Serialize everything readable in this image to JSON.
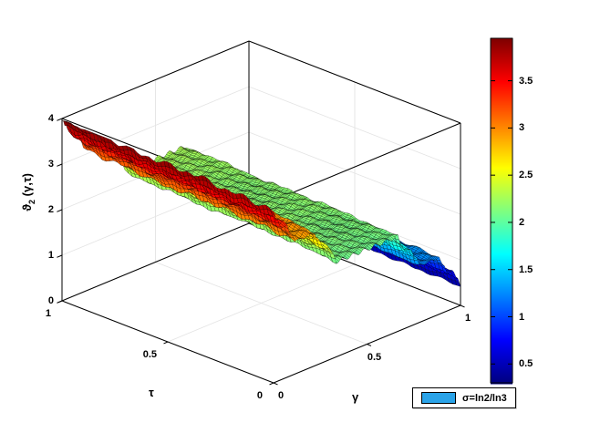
{
  "chart_data": {
    "type": "surface",
    "title": "",
    "x_axis": {
      "label": "γ",
      "range": [
        0,
        1
      ],
      "ticks": [
        "0",
        "0.5",
        "1"
      ],
      "tick_values": [
        0,
        0.5,
        1
      ]
    },
    "y_axis": {
      "label": "τ",
      "range": [
        0,
        1
      ],
      "ticks": [
        "1",
        "0.5",
        "0"
      ],
      "tick_values": [
        1,
        0.5,
        0
      ]
    },
    "z_axis": {
      "label_theta": "ϑ",
      "label_sub": "2",
      "label_args": "(γ,τ)",
      "range": [
        0,
        4
      ],
      "ticks": [
        "0",
        "1",
        "2",
        "3",
        "4"
      ],
      "tick_values": [
        0,
        1,
        2,
        3,
        4
      ]
    },
    "colormap": "jet",
    "clim": [
      0.3,
      3.95
    ],
    "colorbar": {
      "position": "right",
      "ticks": [
        "0.5",
        "1",
        "1.5",
        "2",
        "2.5",
        "3",
        "3.5"
      ],
      "tick_values": [
        0.5,
        1,
        1.5,
        2,
        2.5,
        3,
        3.5
      ]
    },
    "legend": {
      "label": "σ=ln2/ln3",
      "swatch_color": "#2aa3e8"
    },
    "surface_model": {
      "kind": "cantor_staircase_decay",
      "description": "Terraced self-similar surface: z(γ,τ) ≈ z_end + (z_start − z_end)·(1 − C(γ)) + ripple·(C(τ) − 0.5)·w(γ), where C is the Cantor (devil's staircase) function; peak at (γ=0, τ=1), decaying in terraces toward γ=1",
      "z_start": 3.9,
      "z_end": 0.45,
      "tau_ripple_amplitude": 0.3
    },
    "z_profile_along_gamma": {
      "gamma": [
        0,
        0.037,
        0.111,
        0.2,
        0.333,
        0.5,
        0.667,
        0.778,
        0.85,
        0.926,
        1
      ],
      "z": [
        3.9,
        3.47,
        3.04,
        3.04,
        2.18,
        2.18,
        2.18,
        1.31,
        1.31,
        0.88,
        0.45
      ]
    },
    "view": {
      "box": true,
      "grid": true,
      "projection": "matlab-default-3d"
    }
  }
}
